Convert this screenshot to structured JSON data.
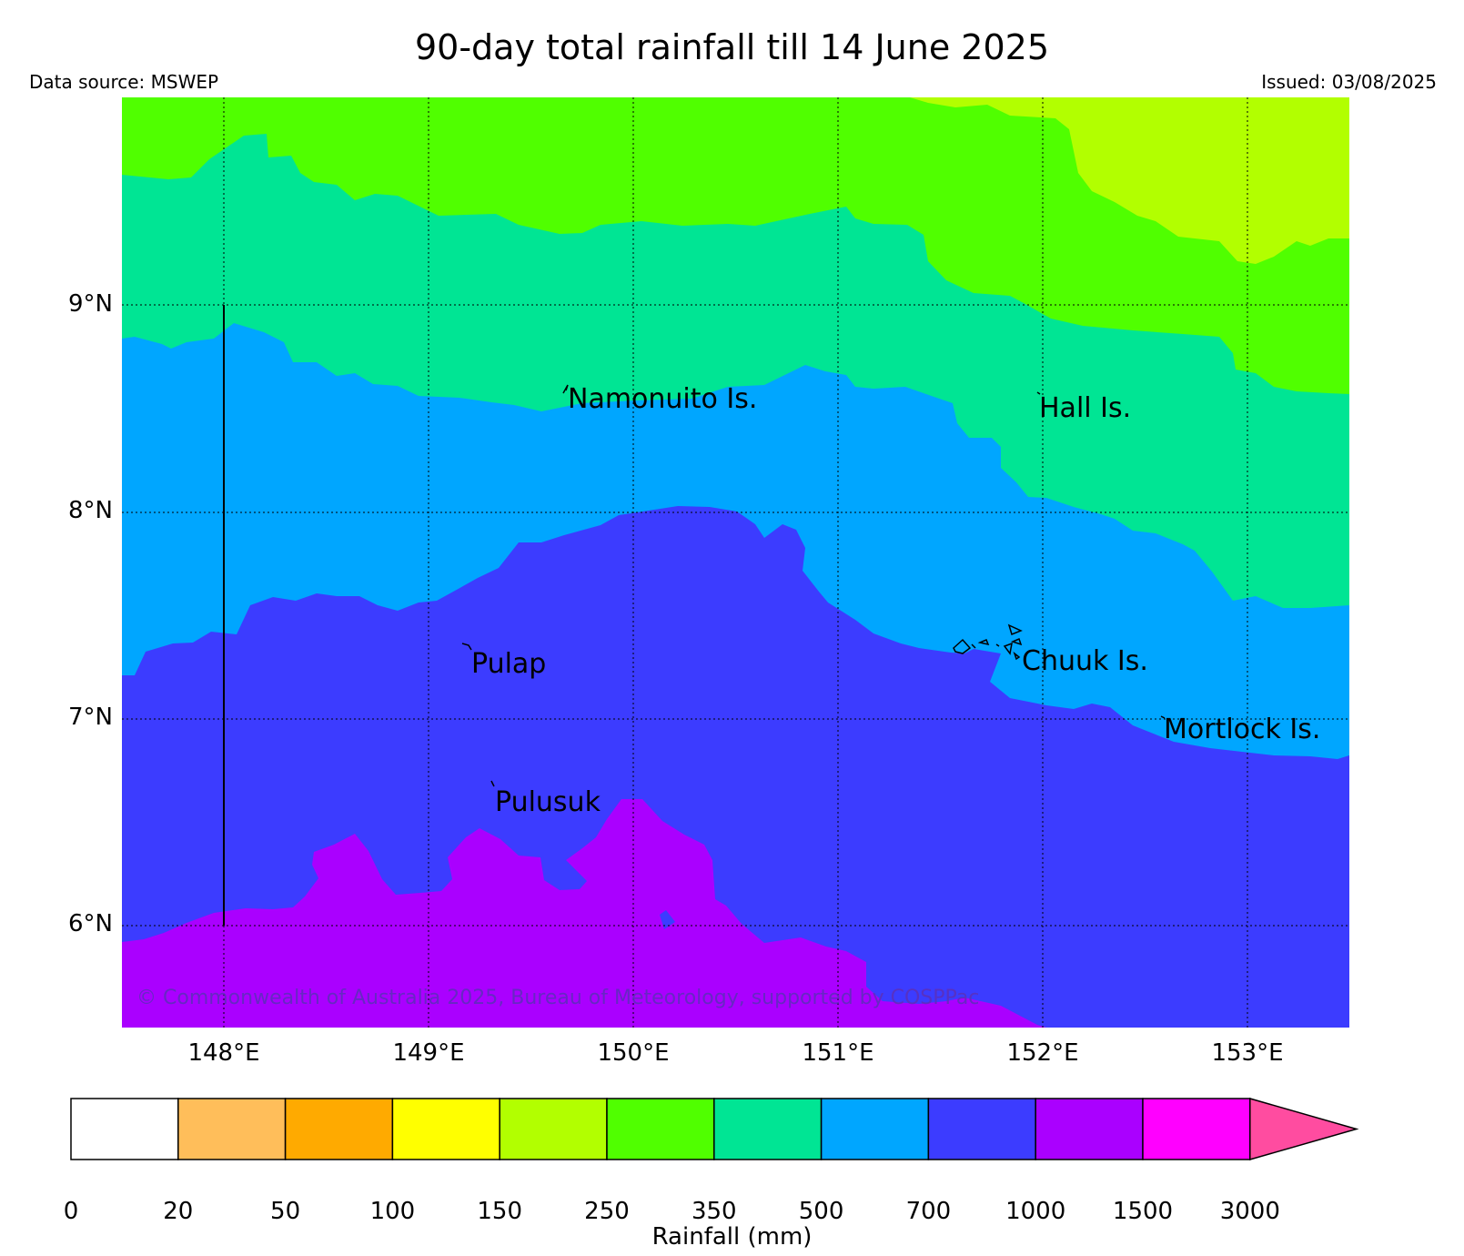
{
  "title": "90-day total rainfall till 14 June 2025",
  "source_text": "Data source: MSWEP",
  "issued_text": "Issued: 03/08/2025",
  "copyright": "© Commonwealth of Australia 2025, Bureau of Meteorology, supported by COSPPac",
  "map": {
    "lat_labels": [
      "9°N",
      "8°N",
      "7°N",
      "6°N"
    ],
    "lon_labels": [
      "148°E",
      "149°E",
      "150°E",
      "151°E",
      "152°E",
      "153°E"
    ],
    "places": {
      "namonuito": "Namonuito Is.",
      "hall": "Hall Is.",
      "pulap": "Pulap",
      "chuuk": "Chuuk Is.",
      "mortlock": "Mortlock Is.",
      "pulusuk": "Pulusuk"
    },
    "zones": [
      {
        "range": "150-250",
        "color": "#b2ff00"
      },
      {
        "range": "250-350",
        "color": "#50ff00"
      },
      {
        "range": "350-500",
        "color": "#00e594"
      },
      {
        "range": "500-700",
        "color": "#00a6ff"
      },
      {
        "range": "700-1000",
        "color": "#3c3cff"
      },
      {
        "range": "1000-1500",
        "color": "#aa00ff"
      }
    ]
  },
  "colorbar": {
    "label": "Rainfall (mm)",
    "ticks": [
      "0",
      "20",
      "50",
      "100",
      "150",
      "250",
      "350",
      "500",
      "700",
      "1000",
      "1500",
      "3000"
    ],
    "colors": [
      "#ffffff",
      "#ffbe5a",
      "#ffaa00",
      "#ffff00",
      "#b2ff00",
      "#50ff00",
      "#00e594",
      "#00a6ff",
      "#3c3cff",
      "#aa00ff",
      "#ff00ff"
    ],
    "extend_color": "#ff4ca0"
  }
}
